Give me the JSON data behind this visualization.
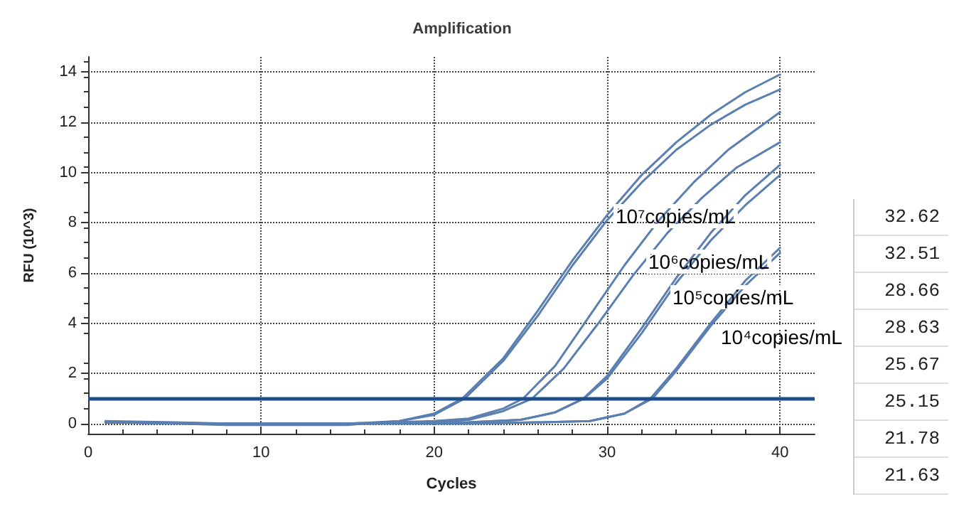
{
  "chart_data": {
    "type": "line",
    "title": "Amplification",
    "xlabel": "Cycles",
    "ylabel": "RFU (10^3)",
    "xlim": [
      0,
      42
    ],
    "xticks": [
      0,
      10,
      20,
      30,
      40
    ],
    "ylim": [
      -0.4,
      14.6
    ],
    "yticks": [
      0,
      2,
      4,
      6,
      8,
      10,
      12,
      14
    ],
    "grid": true,
    "marker": "none",
    "line_style": "solid",
    "ref_lines": [
      {
        "axis": "y",
        "value": 1.0,
        "color": "#1f4e8c"
      }
    ],
    "series": [
      {
        "color": "#5a7fb0",
        "x": [
          1,
          5,
          8,
          15,
          18,
          20,
          21.63,
          24,
          26,
          28,
          30,
          32,
          34,
          36,
          38,
          40
        ],
        "values": [
          0.1,
          0.05,
          0,
          0,
          0.1,
          0.4,
          1.0,
          2.6,
          4.5,
          6.5,
          8.3,
          9.9,
          11.2,
          12.3,
          13.2,
          13.9
        ]
      },
      {
        "color": "#5a7fb0",
        "x": [
          1,
          5,
          8,
          15,
          18,
          20,
          21.78,
          24,
          26,
          28,
          30,
          32,
          34,
          36,
          38,
          40
        ],
        "values": [
          0.05,
          0,
          -0.05,
          -0.05,
          0.1,
          0.35,
          1.0,
          2.5,
          4.3,
          6.3,
          8.1,
          9.6,
          10.9,
          11.9,
          12.7,
          13.3
        ]
      },
      {
        "color": "#5a7fb0",
        "x": [
          1,
          8,
          15,
          20,
          22,
          24,
          25.15,
          27,
          29,
          31,
          33,
          35,
          37,
          40
        ],
        "values": [
          0.05,
          0,
          0,
          0.1,
          0.2,
          0.6,
          1.0,
          2.3,
          4.3,
          6.3,
          8.1,
          9.6,
          10.9,
          12.4
        ]
      },
      {
        "color": "#5a7fb0",
        "x": [
          1,
          8,
          15,
          20,
          22,
          24,
          25.67,
          27.5,
          29.5,
          31.5,
          33.5,
          35.5,
          37.5,
          40
        ],
        "values": [
          0.05,
          0,
          0,
          0.05,
          0.15,
          0.5,
          1.0,
          2.2,
          4.0,
          5.9,
          7.6,
          9.0,
          10.2,
          11.2
        ]
      },
      {
        "color": "#5a7fb0",
        "x": [
          1,
          8,
          15,
          22,
          25,
          27,
          28.63,
          30,
          32,
          34,
          36,
          38,
          40
        ],
        "values": [
          0.05,
          0,
          0,
          0.05,
          0.15,
          0.45,
          1.0,
          1.9,
          3.8,
          5.8,
          7.6,
          9.1,
          10.3
        ]
      },
      {
        "color": "#5a7fb0",
        "x": [
          1,
          8,
          15,
          22,
          25,
          27,
          28.66,
          30,
          32,
          34,
          36,
          38,
          40
        ],
        "values": [
          0.05,
          0,
          0,
          0.05,
          0.15,
          0.45,
          1.0,
          1.8,
          3.6,
          5.6,
          7.3,
          8.7,
          9.9
        ]
      },
      {
        "color": "#5a7fb0",
        "x": [
          1,
          8,
          15,
          22,
          26,
          29,
          31,
          32.51,
          34,
          36,
          38,
          40
        ],
        "values": [
          0.05,
          0,
          0,
          0,
          0.05,
          0.1,
          0.4,
          1.0,
          2.2,
          4.0,
          5.7,
          7.0
        ]
      },
      {
        "color": "#5a7fb0",
        "x": [
          1,
          8,
          15,
          22,
          26,
          29,
          31,
          32.62,
          34,
          36,
          38,
          40
        ],
        "values": [
          0.05,
          0,
          0,
          0,
          0.05,
          0.1,
          0.4,
          1.0,
          2.1,
          3.9,
          5.5,
          6.8
        ]
      }
    ],
    "annotations": [
      "10⁷copies/mL",
      "10⁶copies/mL",
      "10⁵copies/mL",
      "10⁴copies/mL",
      "32.62",
      "32.51",
      "28.66",
      "28.63",
      "25.67",
      "25.15",
      "21.78",
      "21.63"
    ]
  }
}
